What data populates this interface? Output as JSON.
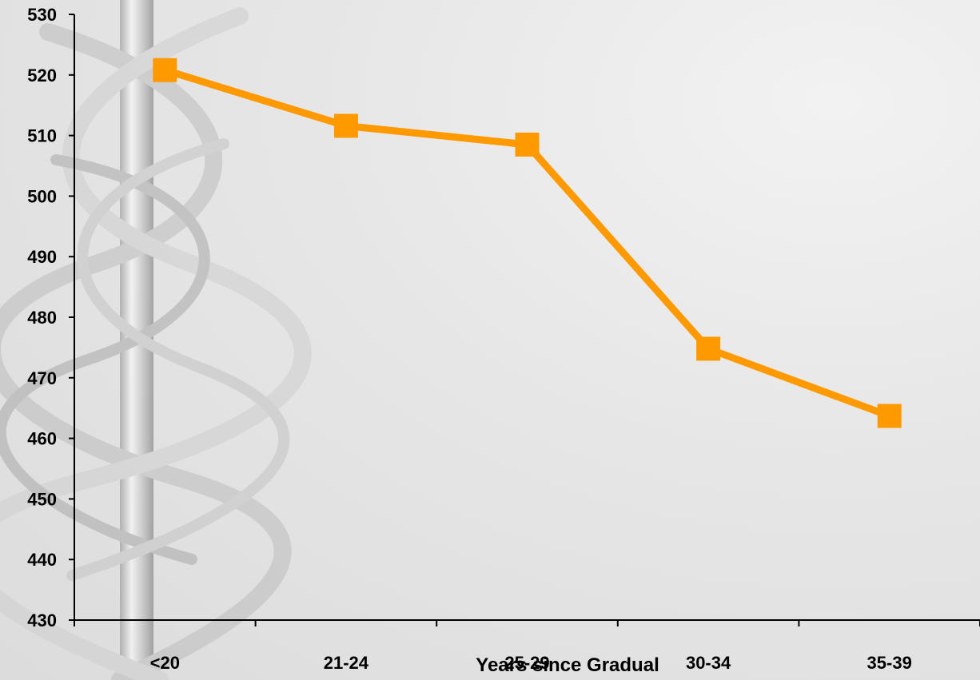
{
  "chart_data": {
    "type": "line",
    "categories": [
      "<20",
      "21-24",
      "25-29",
      "30-34",
      "35-39"
    ],
    "series": [
      {
        "values": [
          520.8,
          511.6,
          508.5,
          474.8,
          463.7
        ],
        "color": "#ff9900",
        "marker": "square"
      }
    ],
    "xlabel": "Years since Gradual",
    "ylabel": "",
    "ylim": [
      430,
      530
    ],
    "yticks": [
      430,
      440,
      450,
      460,
      470,
      480,
      490,
      500,
      510,
      520,
      530
    ],
    "grid": false,
    "legend": "none"
  },
  "background": {
    "motif": "caduceus-icon",
    "color": "#e4e4e4"
  }
}
